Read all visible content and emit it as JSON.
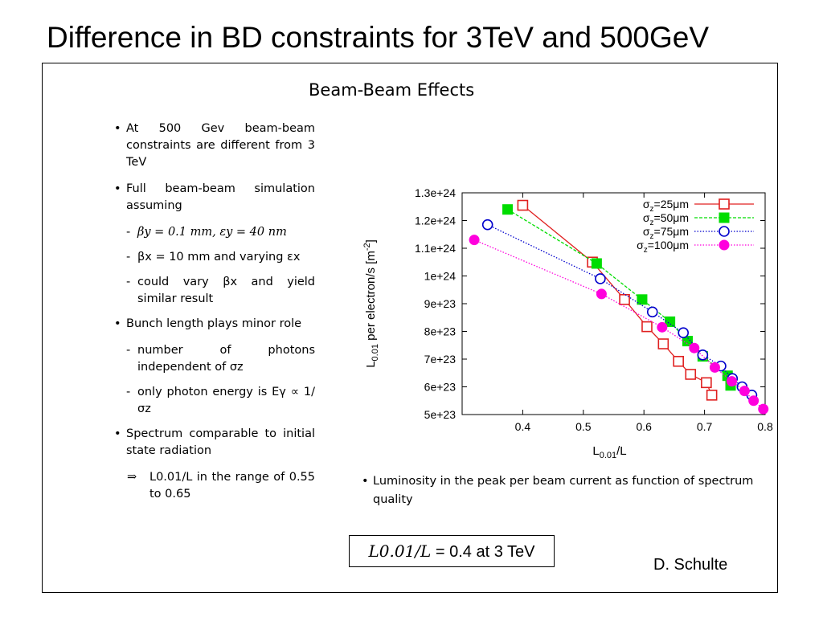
{
  "slide": {
    "title": "Difference in BD constraints for 3TeV and 500GeV",
    "panel_title": "Beam-Beam Effects",
    "author": "D. Schulte",
    "ratio_box": {
      "ratio": "L0.01/L",
      "sep": " = ",
      "value": "0.4 at 3 TeV"
    }
  },
  "bullets": {
    "b1": "At 500 Gev beam-beam constraints are different from 3 TeV",
    "b2": "Full beam-beam simulation assuming",
    "b2_sub1": "βy = 0.1 mm, εy = 40 nm",
    "b2_sub2": "βx = 10 mm and varying εx",
    "b2_sub3": "could vary βx and yield similar result",
    "b3": "Bunch length plays minor role",
    "b3_sub1": "number of photons independent of σz",
    "b3_sub2": "only photon energy is Eγ ∝ 1/σz",
    "b4": "Spectrum comparable to initial state radiation",
    "b4_arrow_sym": "⇒",
    "b4_arrow": "L0.01/L in the range of 0.55 to 0.65"
  },
  "caption": "Luminosity in the peak per beam current as function of spectrum quality",
  "chart_data": {
    "type": "line",
    "xlabel": "L0.01/L",
    "ylabel": "L0.01 per electron/s [m-2]",
    "xlim": [
      0.3,
      0.8
    ],
    "ylim": [
      5e+23,
      1.3e+24
    ],
    "x_ticks": [
      "0.4",
      "0.5",
      "0.6",
      "0.7",
      "0.8"
    ],
    "y_ticks": [
      "5e+23",
      "6e+23",
      "7e+23",
      "8e+23",
      "9e+23",
      "1e+24",
      "1.1e+24",
      "1.2e+24",
      "1.3e+24"
    ],
    "grid": false,
    "legend_position": "top-right",
    "series": [
      {
        "name": "σz=25μm",
        "color": "#e02020",
        "marker": "open-square",
        "line": "solid",
        "x": [
          0.4,
          0.515,
          0.568,
          0.605,
          0.632,
          0.657,
          0.677,
          0.703,
          0.712
        ],
        "y": [
          1.255e+24,
          1.05e+24,
          9.15e+23,
          8.17e+23,
          7.55e+23,
          6.92e+23,
          6.45e+23,
          6.15e+23,
          5.7e+23
        ]
      },
      {
        "name": "σz=50μm",
        "color": "#00dd00",
        "marker": "filled-square",
        "line": "dashed",
        "x": [
          0.375,
          0.522,
          0.597,
          0.643,
          0.672,
          0.697,
          0.738,
          0.743
        ],
        "y": [
          1.24e+24,
          1.045e+24,
          9.15e+23,
          8.35e+23,
          7.65e+23,
          7.1e+23,
          6.4e+23,
          6.05e+23
        ],
        "y_note": "approximate"
      },
      {
        "name": "σz=75μm",
        "color": "#0000cc",
        "marker": "open-circle",
        "line": "dotted",
        "x": [
          0.342,
          0.528,
          0.614,
          0.665,
          0.697,
          0.727,
          0.746,
          0.762,
          0.778
        ],
        "y": [
          1.185e+24,
          9.9e+23,
          8.7e+23,
          7.95e+23,
          7.15e+23,
          6.75e+23,
          6.3e+23,
          6e+23,
          5.7e+23
        ]
      },
      {
        "name": "σz=100μm",
        "color": "#ff00dd",
        "marker": "filled-circle",
        "line": "dotted",
        "x": [
          0.32,
          0.53,
          0.63,
          0.683,
          0.717,
          0.745,
          0.766,
          0.781,
          0.797
        ],
        "y": [
          1.13e+24,
          9.35e+23,
          8.15e+23,
          7.4e+23,
          6.7e+23,
          6.2e+23,
          5.85e+23,
          5.5e+23,
          5.2e+23
        ]
      }
    ]
  }
}
